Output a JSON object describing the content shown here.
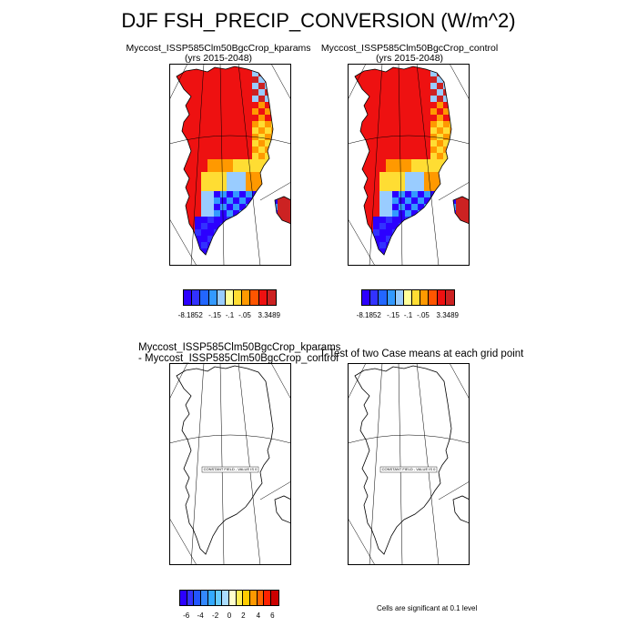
{
  "title": "DJF FSH_PRECIP_CONVERSION (W/m^2)",
  "panels": {
    "top_left": {
      "line1": "Myccost_ISSP585Clm50BgcCrop_kparams",
      "line2": "(yrs 2015-2048)"
    },
    "top_right": {
      "line1": "Myccost_ISSP585Clm50BgcCrop_control",
      "line2": "(yrs 2015-2048)"
    },
    "bottom_left": {
      "line1": "Myccost_ISSP585Clm50BgcCrop_kparams",
      "line2": "- Myccost_ISSP585Clm50BgcCrop_control"
    },
    "bottom_right": {
      "line1": "T-Test of two Case means at each grid point"
    }
  },
  "constant_field_label": "CONSTANT FIELD - VALUE IS 0",
  "top_colorbar": {
    "colors": [
      "#2c00ff",
      "#3232ff",
      "#2266ff",
      "#3399ff",
      "#99ccff",
      "#ffff99",
      "#ffdd33",
      "#ff9900",
      "#ff5500",
      "#ee1111",
      "#cc2222"
    ],
    "labels": [
      "-8.1852",
      "-.15",
      "-.1",
      "-.05",
      "3.3489"
    ]
  },
  "bottom_colorbar": {
    "colors": [
      "#2c00ff",
      "#3333ff",
      "#2255ff",
      "#3388ff",
      "#33aaff",
      "#66ccff",
      "#aaddff",
      "#ffffcc",
      "#ffee55",
      "#ffcc00",
      "#ff9900",
      "#ff6600",
      "#ff2200",
      "#cc0000"
    ],
    "labels": [
      "-6",
      "-4",
      "-2",
      "0",
      "2",
      "4",
      "6"
    ]
  },
  "significance_note": "Cells are significant at 0.1 level"
}
